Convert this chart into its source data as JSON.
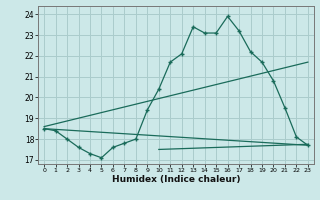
{
  "bg_color": "#cce8e8",
  "grid_color": "#aacccc",
  "line_color": "#1a6b5a",
  "line1_x": [
    0,
    1,
    2,
    3,
    4,
    5,
    6,
    7,
    8,
    9,
    10,
    11,
    12,
    13,
    14,
    15,
    16,
    17,
    18,
    19,
    20,
    21,
    22,
    23
  ],
  "line1_y": [
    18.5,
    18.4,
    18.0,
    17.6,
    17.3,
    17.1,
    17.6,
    17.8,
    18.0,
    19.4,
    20.4,
    21.7,
    22.1,
    23.4,
    23.1,
    23.1,
    23.9,
    23.2,
    22.2,
    21.7,
    20.8,
    19.5,
    18.1,
    17.7
  ],
  "line2_x": [
    0,
    23
  ],
  "line2_y": [
    18.5,
    17.7
  ],
  "line3_x": [
    0,
    23
  ],
  "line3_y": [
    18.6,
    21.7
  ],
  "line4_x": [
    10,
    23
  ],
  "line4_y": [
    17.5,
    17.75
  ],
  "xlabel": "Humidex (Indice chaleur)",
  "ylim": [
    16.8,
    24.4
  ],
  "xlim": [
    -0.5,
    23.5
  ],
  "yticks": [
    17,
    18,
    19,
    20,
    21,
    22,
    23,
    24
  ],
  "xticks": [
    0,
    1,
    2,
    3,
    4,
    5,
    6,
    7,
    8,
    9,
    10,
    11,
    12,
    13,
    14,
    15,
    16,
    17,
    18,
    19,
    20,
    21,
    22,
    23
  ]
}
